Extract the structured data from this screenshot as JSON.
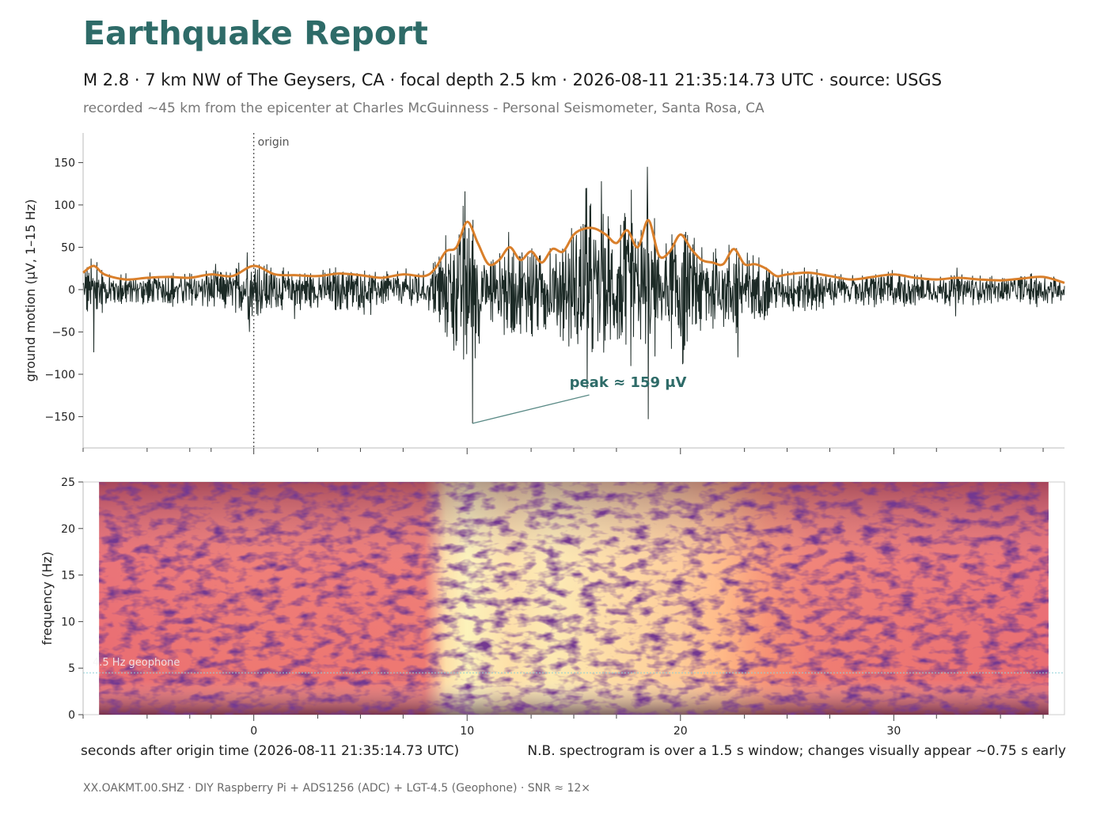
{
  "report": {
    "title": "Earthquake Report",
    "subtitle": "M 2.8  ·  7 km NW of The Geysers, CA  ·  focal depth 2.5 km  ·  2026-08-11 21:35:14.73 UTC  ·  source: USGS",
    "station_line": "recorded ~45 km from the epicenter at Charles McGuinness - Personal Seismometer, Santa Rosa, CA",
    "footer": "XX.OAKMT.00.SHZ  ·  DIY Raspberry Pi + ADS1256 (ADC) + LGT-4.5 (Geophone)  ·  SNR ≈ 12×"
  },
  "colors": {
    "title": "#2e6b68",
    "trace": "#1c2a26",
    "envelope": "#d97f2b",
    "annotation": "#2e6b68",
    "geophone_line": "#8fd0d8"
  },
  "chart_data": [
    {
      "type": "line",
      "panel": "waveform",
      "ylabel": "ground motion  (μV, 1–15 Hz)",
      "xlim": [
        -8,
        38
      ],
      "ylim": [
        -187,
        185
      ],
      "yticks": [
        -150,
        -100,
        -50,
        0,
        50,
        100,
        150
      ],
      "grid": false,
      "origin_marker": {
        "x": 0,
        "label": "origin"
      },
      "peak_annotation": {
        "label": "peak ≈ 159 μV",
        "x": 10.25,
        "y": -158,
        "text_x": 14.8,
        "text_y": -115
      },
      "envelope": {
        "x": [
          -8,
          -7.5,
          -7,
          -6,
          -5,
          -4,
          -3,
          -2,
          -1,
          0,
          1,
          2,
          3,
          4,
          5,
          6,
          7,
          8,
          8.5,
          9,
          9.5,
          10,
          10.5,
          11,
          11.5,
          12,
          12.5,
          13,
          13.5,
          14,
          14.5,
          15,
          15.5,
          16,
          16.5,
          17,
          17.5,
          18,
          18.5,
          19,
          19.5,
          20,
          20.5,
          21,
          21.5,
          22,
          22.5,
          23,
          23.5,
          24,
          24.5,
          25,
          26,
          27,
          28,
          29,
          30,
          31,
          32,
          33,
          34,
          35,
          36,
          37,
          38
        ],
        "y": [
          20,
          28,
          18,
          12,
          14,
          15,
          14,
          18,
          16,
          28,
          18,
          17,
          16,
          19,
          17,
          14,
          18,
          16,
          25,
          45,
          50,
          80,
          55,
          30,
          35,
          50,
          35,
          45,
          32,
          48,
          45,
          65,
          72,
          72,
          65,
          55,
          70,
          50,
          82,
          40,
          45,
          65,
          48,
          35,
          32,
          30,
          48,
          30,
          30,
          25,
          16,
          18,
          20,
          16,
          12,
          15,
          18,
          14,
          12,
          14,
          12,
          11,
          13,
          15,
          8
        ]
      },
      "extreme_peaks": [
        {
          "x": -7.5,
          "y": -74
        },
        {
          "x": -0.3,
          "y": 44
        },
        {
          "x": -0.2,
          "y": -50
        },
        {
          "x": 9.9,
          "y": 116
        },
        {
          "x": 10.25,
          "y": -158
        },
        {
          "x": 15.6,
          "y": 120
        },
        {
          "x": 16.3,
          "y": 128
        },
        {
          "x": 17.7,
          "y": 118
        },
        {
          "x": 18.45,
          "y": 145
        },
        {
          "x": 18.5,
          "y": -153
        },
        {
          "x": 20.1,
          "y": -88
        },
        {
          "x": 22.7,
          "y": -80
        }
      ]
    },
    {
      "type": "heatmap",
      "panel": "spectrogram",
      "ylabel": "frequency (Hz)",
      "xlabel": "seconds after origin time  (2026-08-11 21:35:14.73 UTC)",
      "xlim": [
        -8,
        38
      ],
      "ylim": [
        0,
        25
      ],
      "data_x_range": [
        -7.25,
        37.25
      ],
      "yticks": [
        0,
        5,
        10,
        15,
        20,
        25
      ],
      "xticks": [
        0,
        10,
        20,
        30
      ],
      "minor_xticks": [
        -8,
        -5,
        -3,
        -2,
        0,
        3,
        5,
        7,
        10,
        13,
        15,
        17,
        20,
        23,
        25,
        27,
        30,
        32,
        35,
        37
      ],
      "colormap": "magma",
      "geophone_line": {
        "y": 4.5,
        "label": "4.5 Hz geophone"
      },
      "note": "N.B. spectrogram is over a 1.5 s window; changes visually appear ~0.75 s early",
      "energy_profile": {
        "x": [
          -8,
          -4,
          0,
          4,
          8,
          9,
          10,
          12,
          14,
          16,
          18,
          20,
          22,
          24,
          26,
          30,
          34,
          38
        ],
        "values": [
          0.25,
          0.28,
          0.32,
          0.3,
          0.32,
          0.85,
          0.95,
          0.85,
          0.9,
          0.85,
          0.8,
          0.75,
          0.65,
          0.45,
          0.35,
          0.3,
          0.28,
          0.25
        ]
      }
    }
  ]
}
